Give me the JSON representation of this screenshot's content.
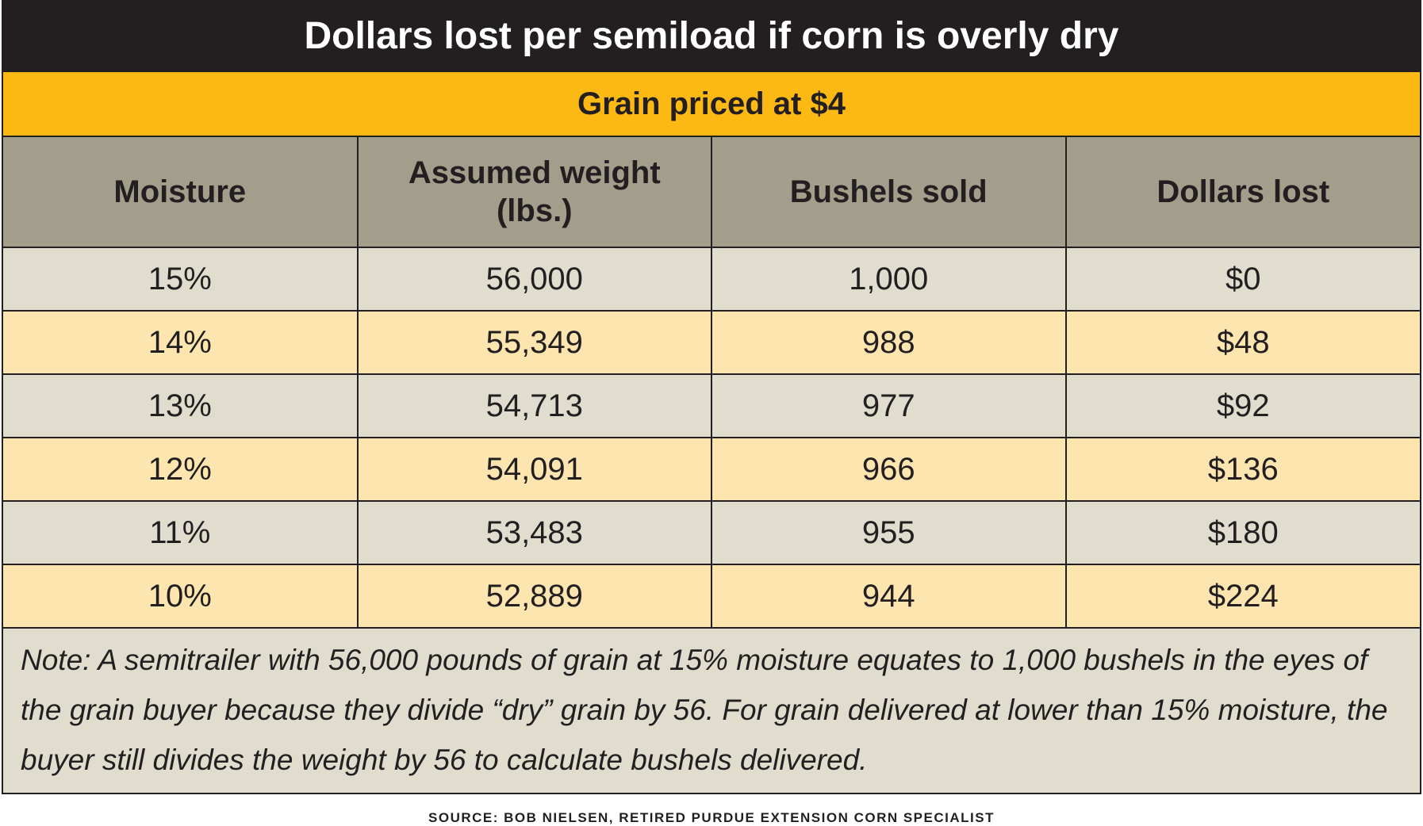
{
  "header": {
    "title": "Dollars lost per semiload if corn is overly dry",
    "subtitle": "Grain priced at $4"
  },
  "table": {
    "columns": [
      "Moisture",
      "Assumed weight (lbs.)",
      "Bushels sold",
      "Dollars lost"
    ],
    "rows": [
      [
        "15%",
        "56,000",
        "1,000",
        "$0"
      ],
      [
        "14%",
        "55,349",
        "988",
        "$48"
      ],
      [
        "13%",
        "54,713",
        "977",
        "$92"
      ],
      [
        "12%",
        "54,091",
        "966",
        "$136"
      ],
      [
        "11%",
        "53,483",
        "955",
        "$180"
      ],
      [
        "10%",
        "52,889",
        "944",
        "$224"
      ]
    ]
  },
  "note": "Note: A semitrailer with 56,000 pounds of grain at 15% moisture equates to 1,000 bushels in the eyes of the grain buyer because they divide “dry” grain by 56. For grain delivered at lower than 15% moisture, the buyer still divides the weight by 56 to calculate bushels delivered.",
  "source": "SOURCE: BOB NIELSEN, RETIRED PURDUE EXTENSION CORN SPECIALIST"
}
